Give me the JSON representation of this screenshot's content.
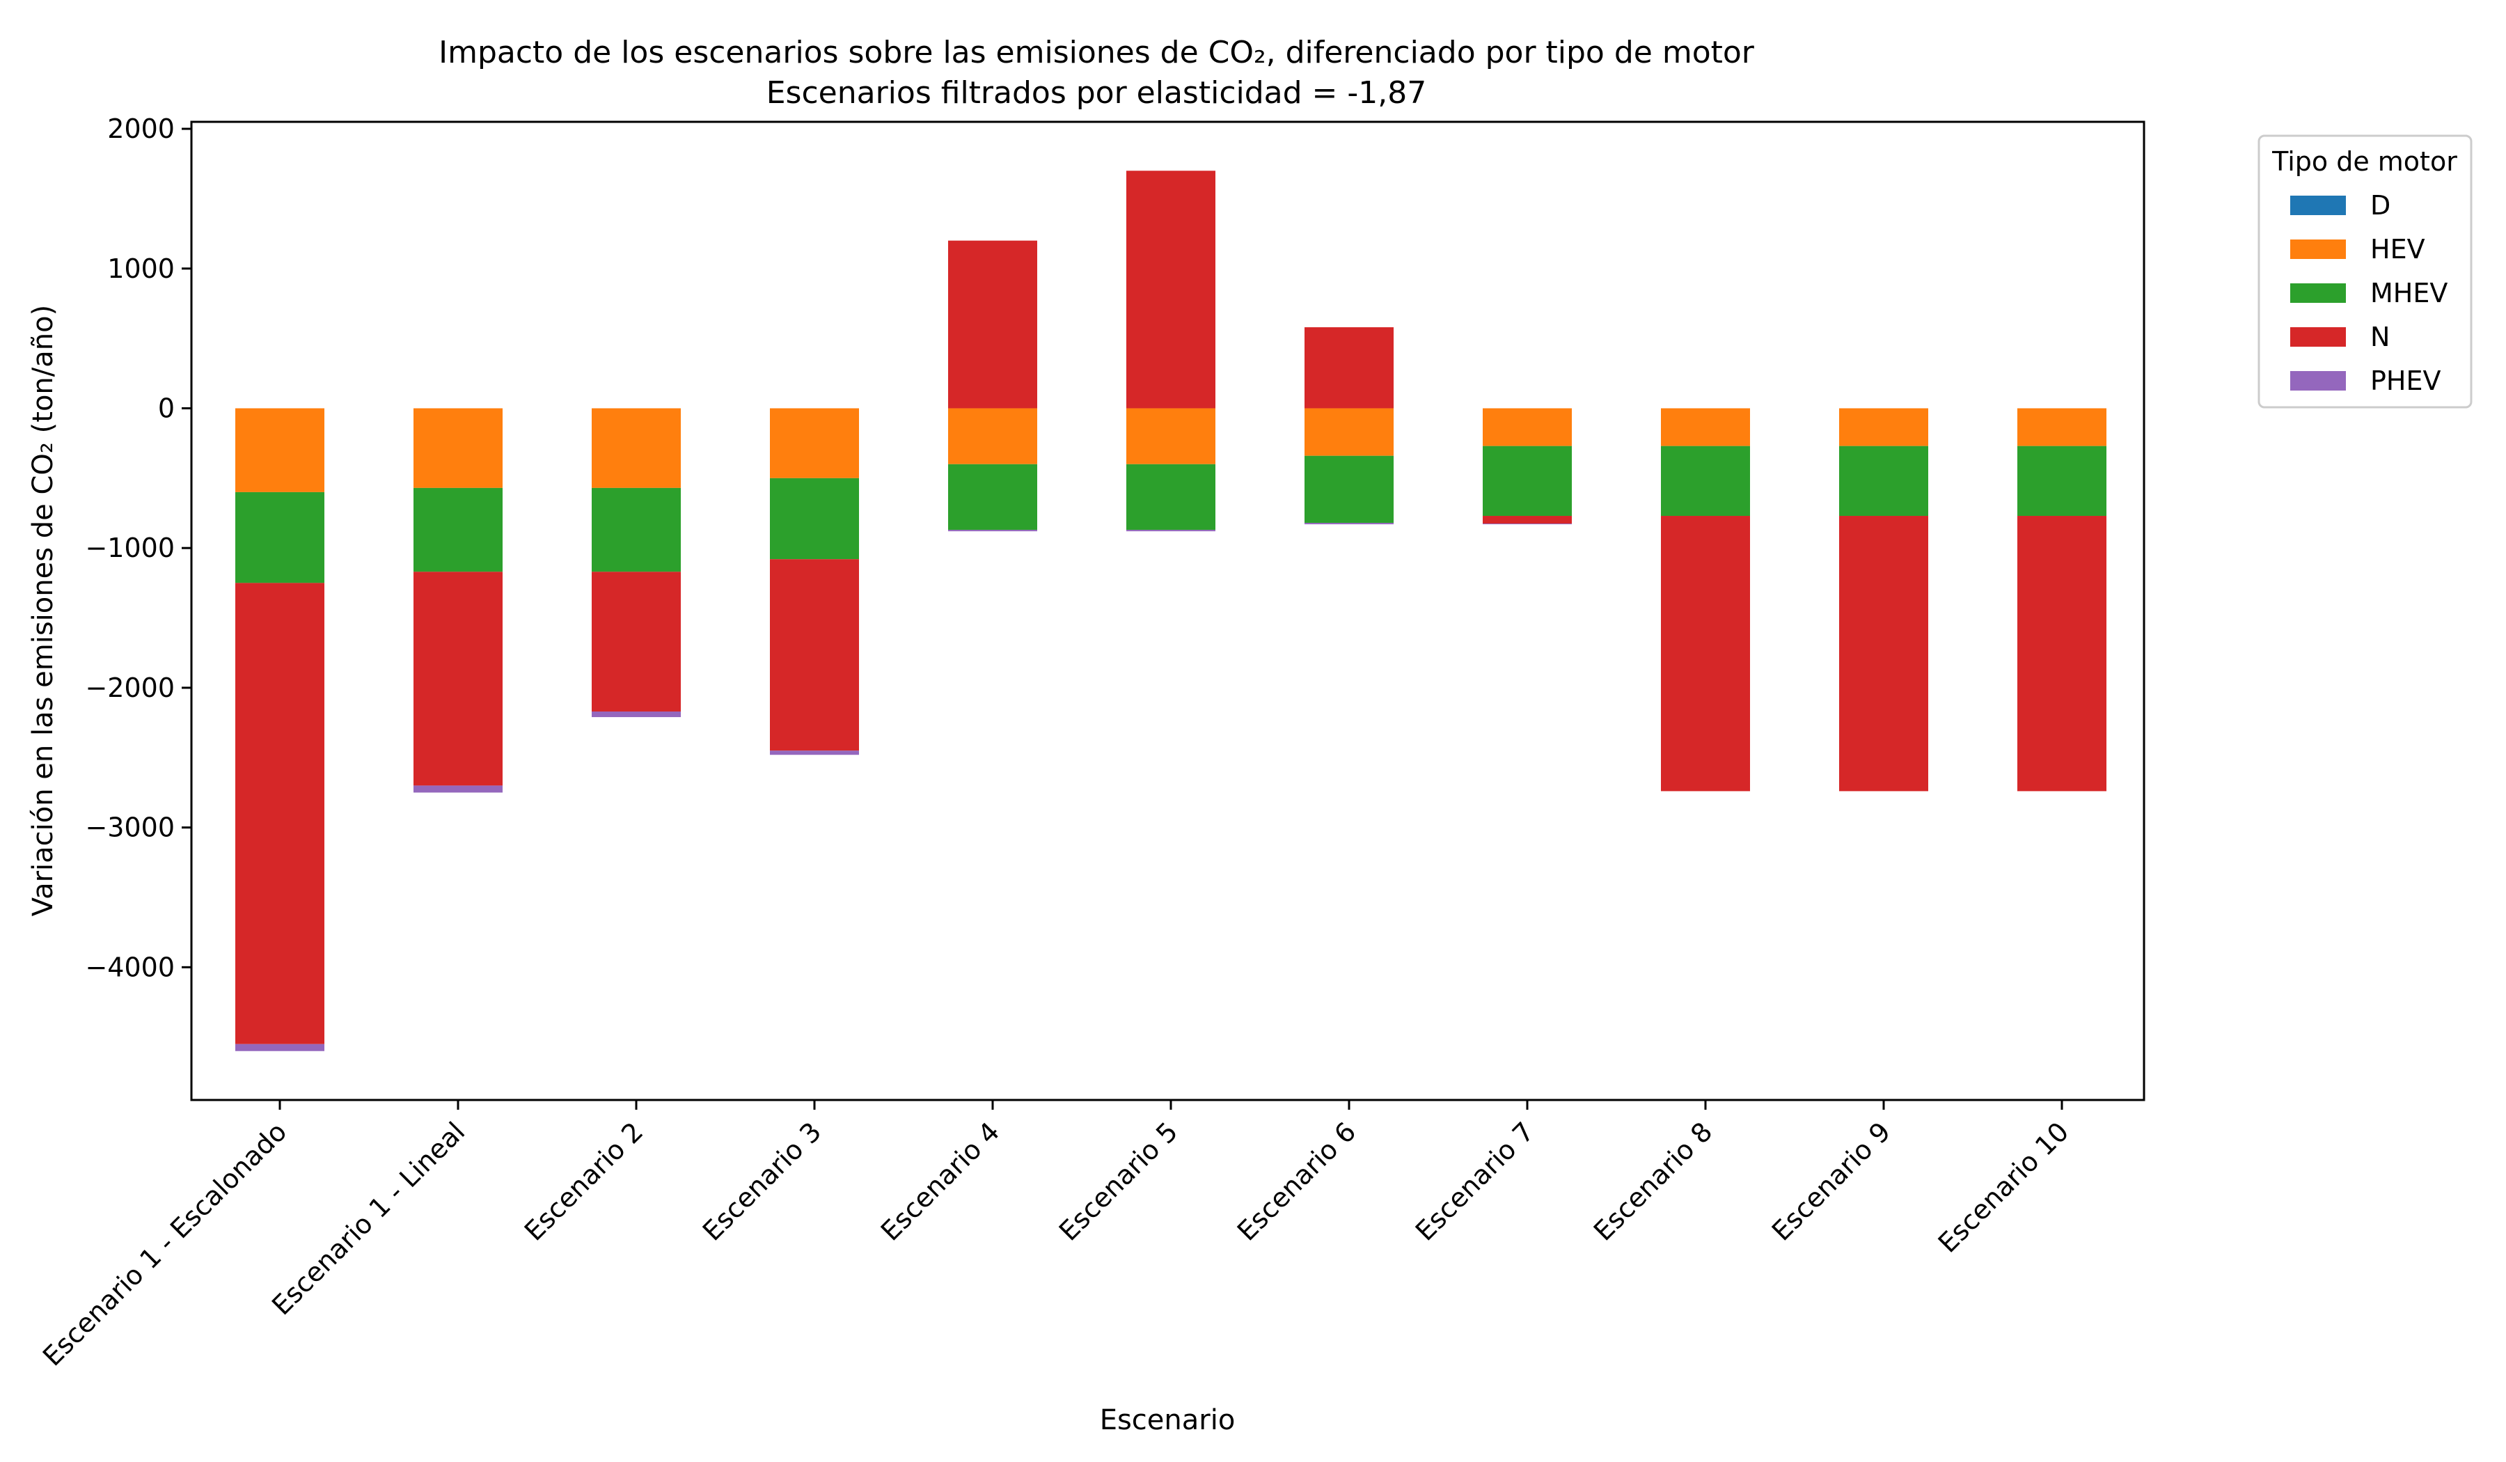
{
  "chart_data": {
    "type": "bar",
    "stacked": true,
    "title": "Impacto de los escenarios sobre las emisiones de CO₂, diferenciado por tipo de motor",
    "subtitle": "Escenarios filtrados por elasticidad = -1,87",
    "xlabel": "Escenario",
    "ylabel": "Variación en las emisiones de CO₂ (ton/año)",
    "ylim": [
      -4950,
      2050
    ],
    "yticks": [
      2000,
      1000,
      0,
      -1000,
      -2000,
      -3000,
      -4000
    ],
    "ytick_labels": [
      "2000",
      "1000",
      "0",
      "−1000",
      "−2000",
      "−3000",
      "−4000"
    ],
    "grid": false,
    "categories": [
      "Escenario 1 - Escalonado",
      "Escenario 1 - Lineal",
      "Escenario 2",
      "Escenario 3",
      "Escenario 4",
      "Escenario 5",
      "Escenario 6",
      "Escenario 7",
      "Escenario 8",
      "Escenario 9",
      "Escenario 10"
    ],
    "legend": {
      "title": "Tipo de motor",
      "position": "outside-top-right"
    },
    "series": [
      {
        "name": "D",
        "color": "#1f77b4",
        "values": [
          0,
          0,
          0,
          0,
          0,
          0,
          0,
          0,
          0,
          0,
          0
        ]
      },
      {
        "name": "HEV",
        "color": "#ff7f0e",
        "values": [
          -600,
          -570,
          -570,
          -500,
          -400,
          -400,
          -340,
          -270,
          -270,
          -270,
          -270
        ]
      },
      {
        "name": "MHEV",
        "color": "#2ca02c",
        "values": [
          -650,
          -600,
          -600,
          -580,
          -470,
          -470,
          -480,
          -500,
          -500,
          -500,
          -500
        ]
      },
      {
        "name": "N",
        "color": "#d62728",
        "values": [
          -3300,
          -1530,
          -1000,
          -1370,
          1200,
          1700,
          580,
          -55,
          -1970,
          -1970,
          -1970
        ]
      },
      {
        "name": "PHEV",
        "color": "#9467bd",
        "values": [
          -50,
          -50,
          -40,
          -30,
          -10,
          -10,
          -10,
          -5,
          0,
          0,
          0
        ]
      }
    ]
  }
}
